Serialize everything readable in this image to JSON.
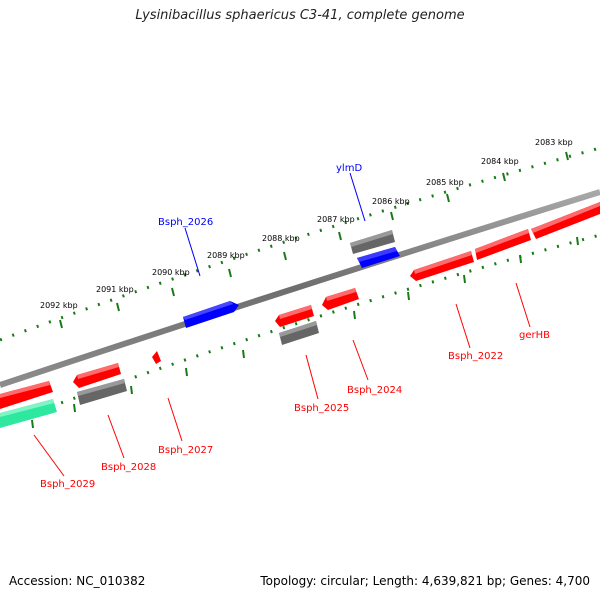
{
  "title": "Lysinibacillus sphaericus C3-41, complete genome",
  "footer": {
    "accession": "Accession: NC_010382",
    "summary": "Topology: circular; Length: 4,639,821 bp; Genes: 4,700"
  },
  "colors": {
    "backbone": "#7a7a7a",
    "tick": "#1a7a1a",
    "forward_gene": "#0000ff",
    "reverse_gene": "#ff0000",
    "gray_feature": "#666666",
    "teal_feature": "#2ee8a0"
  },
  "ticks": [
    "2083 kbp",
    "2084 kbp",
    "2085 kbp",
    "2086 kbp",
    "2087 kbp",
    "2088 kbp",
    "2089 kbp",
    "2090 kbp",
    "2091 kbp",
    "2092 kbp"
  ],
  "gene_labels": [
    {
      "text": "ylmD",
      "color": "blue"
    },
    {
      "text": "Bsph_2026",
      "color": "blue"
    },
    {
      "text": "gerHB",
      "color": "red"
    },
    {
      "text": "Bsph_2022",
      "color": "red"
    },
    {
      "text": "Bsph_2024",
      "color": "red"
    },
    {
      "text": "Bsph_2025",
      "color": "red"
    },
    {
      "text": "Bsph_2027",
      "color": "red"
    },
    {
      "text": "Bsph_2028",
      "color": "red"
    },
    {
      "text": "Bsph_2029",
      "color": "red"
    }
  ]
}
